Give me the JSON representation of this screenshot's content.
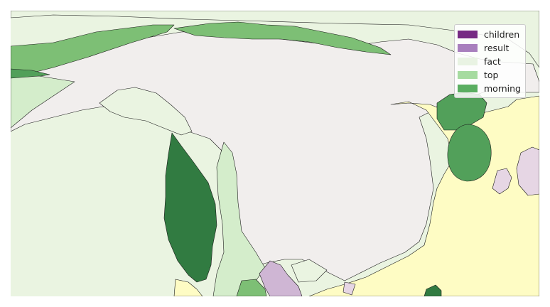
{
  "legend": {
    "entries": [
      {
        "label": "children",
        "color": "#762a83"
      },
      {
        "label": "result",
        "color": "#a87fbd"
      },
      {
        "label": "fact",
        "color": "#e9f3e3"
      },
      {
        "label": "top",
        "color": "#a6dba0"
      },
      {
        "label": "morning",
        "color": "#5aae61"
      }
    ]
  },
  "map": {
    "colors": {
      "ocean": "#eaf4e1",
      "land_main": "#f1eeed",
      "yellow_region": "#fefcc4",
      "light_green": "#d4edcb",
      "mid_green": "#7dbf75",
      "green": "#52a05a",
      "dark_green": "#317b41",
      "light_purple": "#cfb6d4",
      "pale_purple": "#e6d6e4"
    }
  }
}
